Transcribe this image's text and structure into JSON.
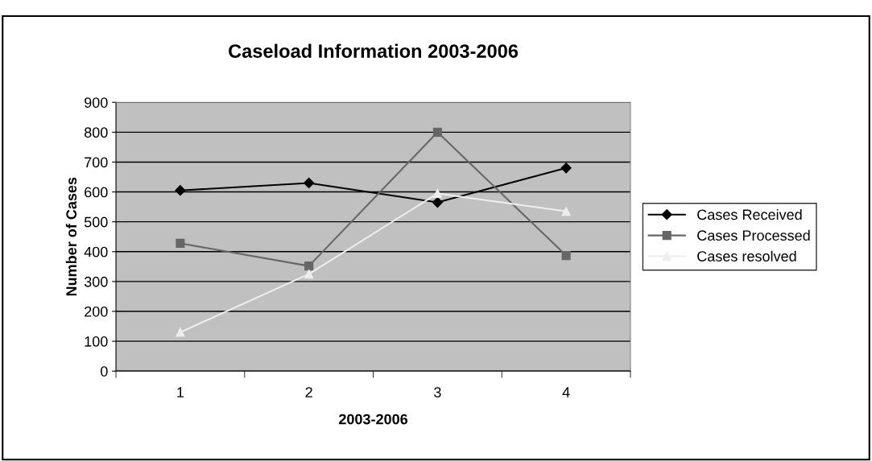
{
  "chart_data": {
    "type": "line",
    "title": "Caseload Information 2003-2006",
    "xlabel": "2003-2006",
    "ylabel": "Number of Cases",
    "categories": [
      "1",
      "2",
      "3",
      "4"
    ],
    "series": [
      {
        "name": "Cases Received",
        "color": "#000000",
        "marker": "diamond",
        "values": [
          605,
          630,
          565,
          680
        ]
      },
      {
        "name": "Cases Processed",
        "color": "#666666",
        "marker": "square",
        "values": [
          428,
          352,
          800,
          387
        ]
      },
      {
        "name": "Cases resolved",
        "color": "#eeeeee",
        "marker": "triangle",
        "values": [
          130,
          325,
          595,
          535
        ]
      }
    ],
    "ylim": [
      0,
      900
    ],
    "yticks": [
      0,
      100,
      200,
      300,
      400,
      500,
      600,
      700,
      800,
      900
    ],
    "grid": "y",
    "legend": "right",
    "line_style": "solid"
  }
}
